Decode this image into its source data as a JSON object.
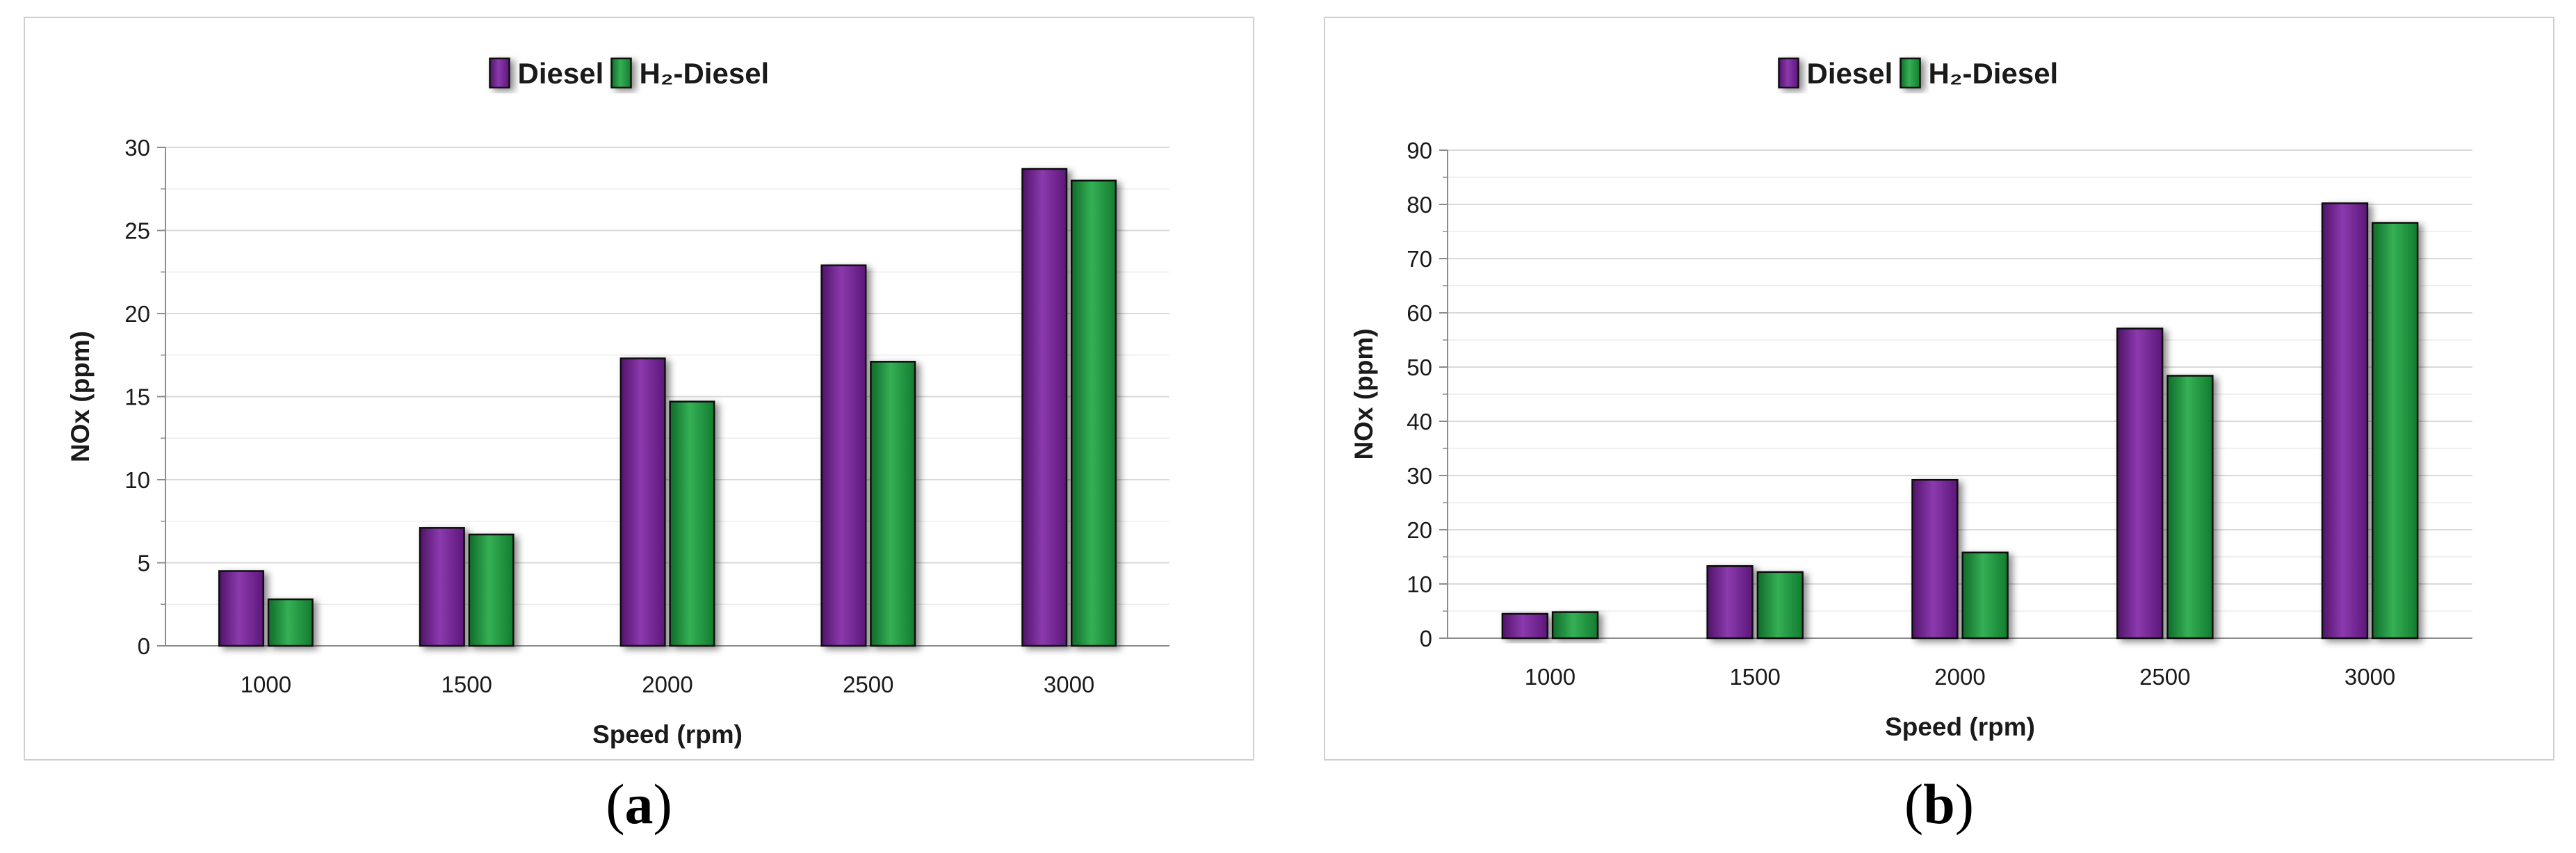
{
  "chart_data": [
    {
      "type": "bar",
      "panel_label": "a",
      "categories": [
        "1000",
        "1500",
        "2000",
        "2500",
        "3000"
      ],
      "series": [
        {
          "name": "Diesel",
          "values": [
            4.5,
            7.1,
            17.3,
            22.9,
            28.7
          ]
        },
        {
          "name": "H₂-Diesel",
          "values": [
            2.8,
            6.7,
            14.7,
            17.1,
            28.0
          ]
        }
      ],
      "xlabel": "Speed (rpm)",
      "ylabel": "NOx (ppm)",
      "ylim": [
        0,
        30
      ],
      "yticks": [
        0,
        5,
        10,
        15,
        20,
        25,
        30
      ],
      "grid": true,
      "legend_position": "top-center"
    },
    {
      "type": "bar",
      "panel_label": "b",
      "categories": [
        "1000",
        "1500",
        "2000",
        "2500",
        "3000"
      ],
      "series": [
        {
          "name": "Diesel",
          "values": [
            4.5,
            13.3,
            29.2,
            57.1,
            80.2
          ]
        },
        {
          "name": "H₂-Diesel",
          "values": [
            4.8,
            12.2,
            15.8,
            48.4,
            76.6
          ]
        }
      ],
      "xlabel": "Speed (rpm)",
      "ylabel": "NOx (ppm)",
      "ylim": [
        0,
        90
      ],
      "yticks": [
        0,
        10,
        20,
        30,
        40,
        50,
        60,
        70,
        80,
        90
      ],
      "grid": true,
      "legend_position": "top-center"
    }
  ],
  "colors": {
    "Diesel": "#7b1fa2",
    "H₂-Diesel": "#19a53f"
  }
}
